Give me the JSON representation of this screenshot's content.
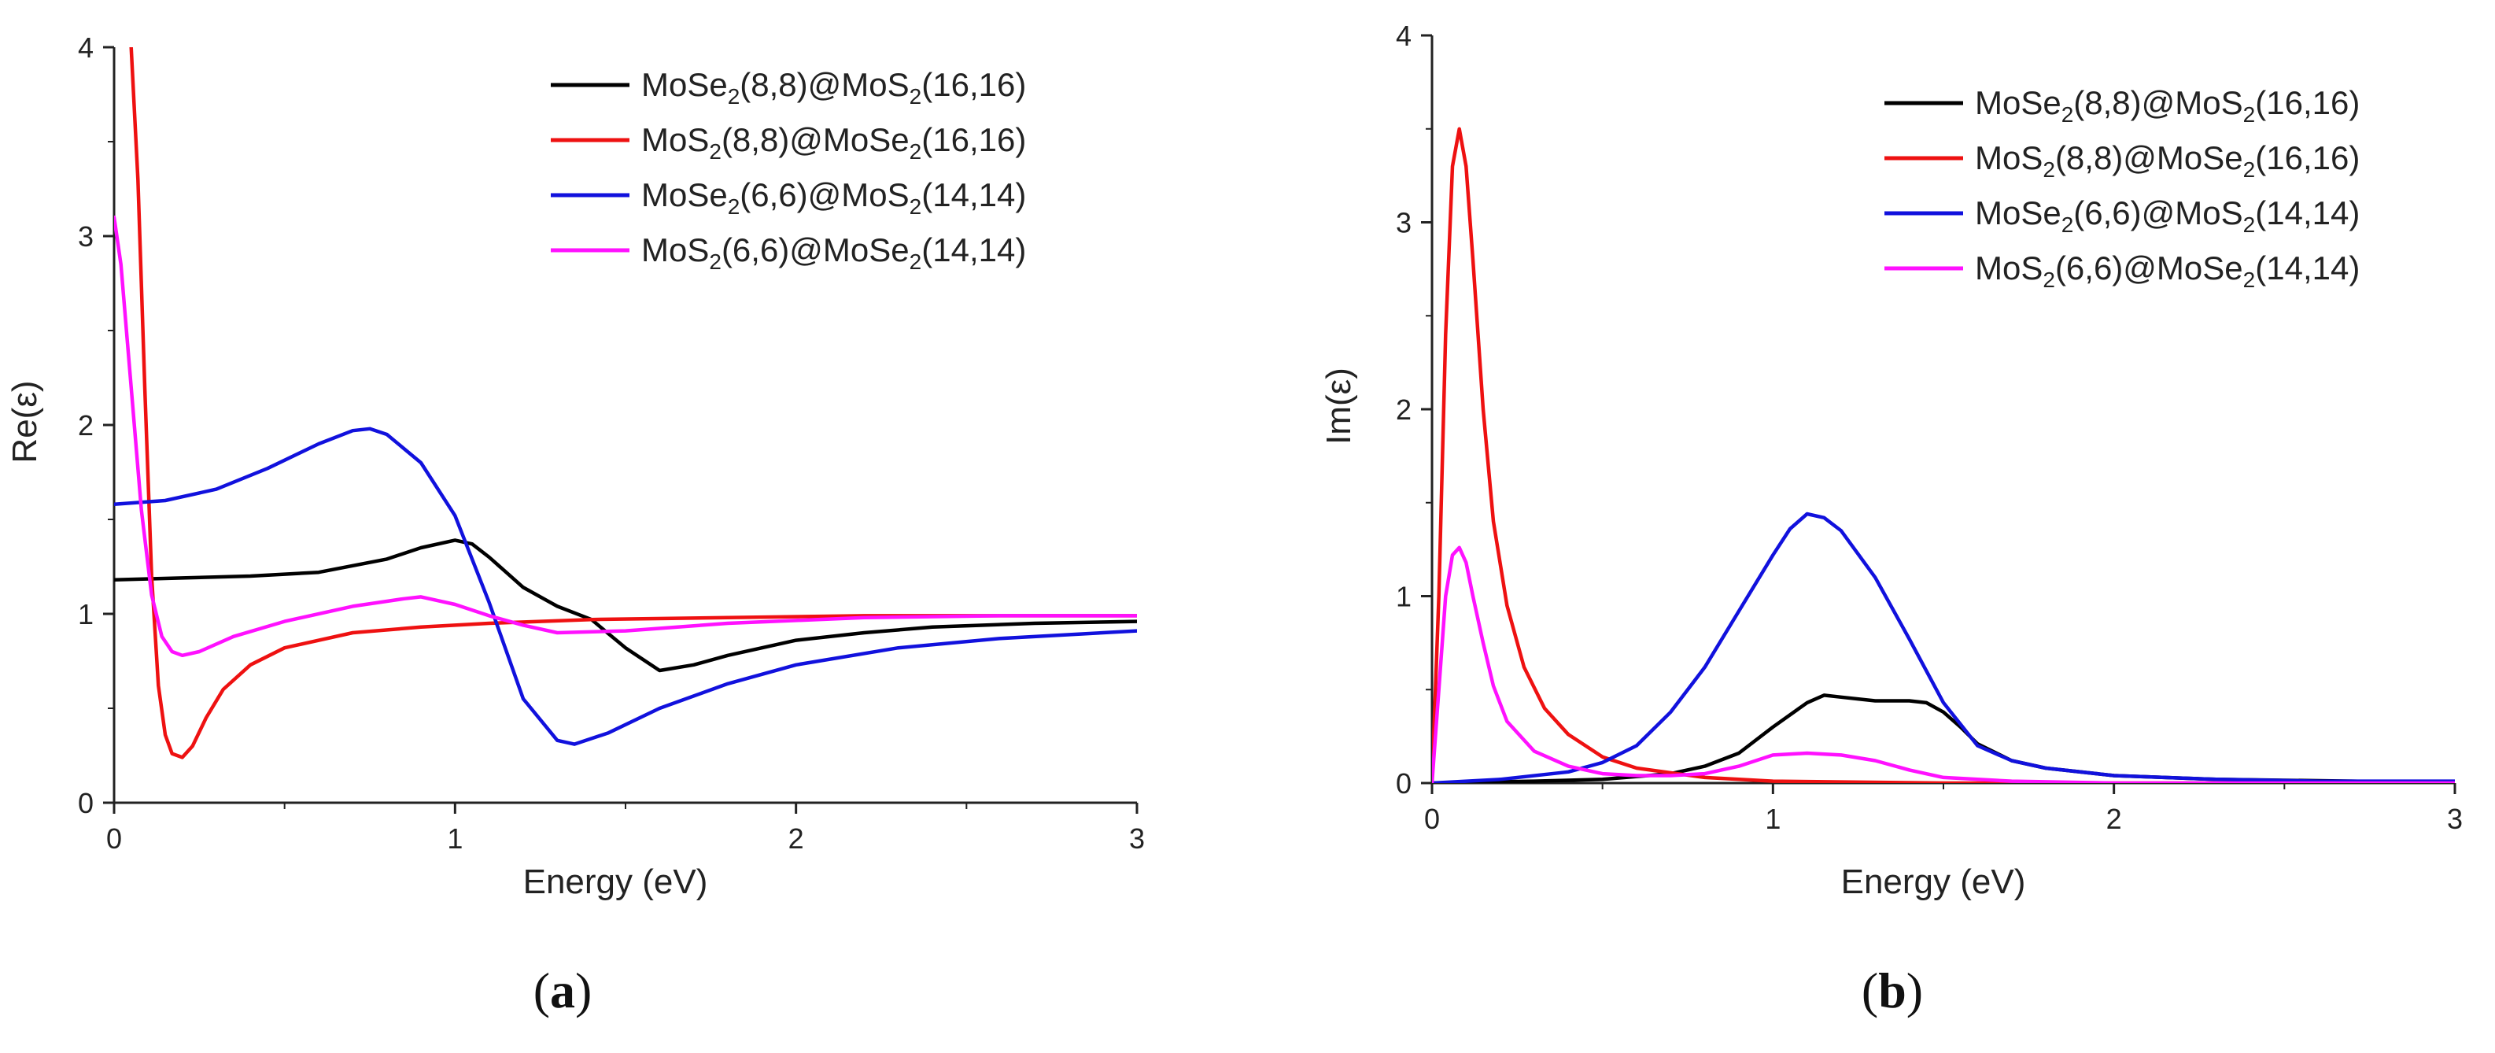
{
  "figure": {
    "panel_a_label": {
      "open": "(",
      "letter": "a",
      "close": ")"
    },
    "panel_b_label": {
      "open": "(",
      "letter": "b",
      "close": ")"
    }
  },
  "colors": {
    "MoSe2(8,8)@MoS2(16,16)": "#000000",
    "MoS2(8,8)@MoSe2(16,16)": "#ee1111",
    "MoSe2(6,6)@MoS2(14,14)": "#1111dd",
    "MoS2(6,6)@MoSe2(14,14)": "#ff11ff"
  },
  "legend_entries": [
    {
      "key": "s1",
      "parts": [
        [
          "MoSe",
          ""
        ],
        [
          "2",
          "sub"
        ],
        [
          "(8,8)@MoS",
          ""
        ],
        [
          "2",
          "sub"
        ],
        [
          "(16,16)",
          ""
        ]
      ],
      "color": "#000000"
    },
    {
      "key": "s2",
      "parts": [
        [
          "MoS",
          ""
        ],
        [
          "2",
          "sub"
        ],
        [
          "(8,8)@MoSe",
          ""
        ],
        [
          "2",
          "sub"
        ],
        [
          "(16,16)",
          ""
        ]
      ],
      "color": "#ee1111"
    },
    {
      "key": "s3",
      "parts": [
        [
          "MoSe",
          ""
        ],
        [
          "2",
          "sub"
        ],
        [
          "(6,6)@MoS",
          ""
        ],
        [
          "2",
          "sub"
        ],
        [
          "(14,14)",
          ""
        ]
      ],
      "color": "#1111dd"
    },
    {
      "key": "s4",
      "parts": [
        [
          "MoS",
          ""
        ],
        [
          "2",
          "sub"
        ],
        [
          "(6,6)@MoSe",
          ""
        ],
        [
          "2",
          "sub"
        ],
        [
          "(14,14)",
          ""
        ]
      ],
      "color": "#ff11ff"
    }
  ],
  "chart_data": [
    {
      "type": "line",
      "id": "a",
      "title": "",
      "xlabel": "Energy (eV)",
      "ylabel": "Re(ε)",
      "xlim": [
        0,
        3
      ],
      "ylim": [
        0,
        4
      ],
      "xticks": [
        0,
        1,
        2,
        3
      ],
      "yticks": [
        0,
        1,
        2,
        3,
        4
      ],
      "legend": "top-right",
      "series": [
        {
          "name": "MoSe2(8,8)@MoS2(16,16)",
          "color": "#000000",
          "x": [
            0,
            0.2,
            0.4,
            0.6,
            0.8,
            0.9,
            1.0,
            1.05,
            1.1,
            1.2,
            1.3,
            1.4,
            1.5,
            1.6,
            1.7,
            1.8,
            2.0,
            2.2,
            2.4,
            2.7,
            3.0
          ],
          "y": [
            1.18,
            1.19,
            1.2,
            1.22,
            1.29,
            1.35,
            1.39,
            1.37,
            1.3,
            1.14,
            1.04,
            0.97,
            0.82,
            0.7,
            0.73,
            0.78,
            0.86,
            0.9,
            0.93,
            0.95,
            0.96
          ]
        },
        {
          "name": "MoS2(8,8)@MoSe2(16,16)",
          "color": "#ee1111",
          "x": [
            0.05,
            0.07,
            0.09,
            0.11,
            0.13,
            0.15,
            0.17,
            0.2,
            0.23,
            0.27,
            0.32,
            0.4,
            0.5,
            0.7,
            0.9,
            1.1,
            1.4,
            1.8,
            2.2,
            2.6,
            3.0
          ],
          "y": [
            4.0,
            3.3,
            2.2,
            1.2,
            0.62,
            0.36,
            0.26,
            0.24,
            0.3,
            0.45,
            0.6,
            0.73,
            0.82,
            0.9,
            0.93,
            0.95,
            0.97,
            0.98,
            0.99,
            0.99,
            0.99
          ]
        },
        {
          "name": "MoSe2(6,6)@MoS2(14,14)",
          "color": "#1111dd",
          "x": [
            0,
            0.15,
            0.3,
            0.45,
            0.6,
            0.7,
            0.75,
            0.8,
            0.9,
            1.0,
            1.1,
            1.2,
            1.3,
            1.35,
            1.45,
            1.6,
            1.8,
            2.0,
            2.3,
            2.6,
            3.0
          ],
          "y": [
            1.58,
            1.6,
            1.66,
            1.77,
            1.9,
            1.97,
            1.98,
            1.95,
            1.8,
            1.52,
            1.06,
            0.55,
            0.33,
            0.31,
            0.37,
            0.5,
            0.63,
            0.73,
            0.82,
            0.87,
            0.91
          ]
        },
        {
          "name": "MoS2(6,6)@MoSe2(14,14)",
          "color": "#ff11ff",
          "x": [
            0,
            0.02,
            0.05,
            0.08,
            0.11,
            0.14,
            0.17,
            0.2,
            0.25,
            0.35,
            0.5,
            0.7,
            0.85,
            0.9,
            1.0,
            1.1,
            1.2,
            1.3,
            1.5,
            1.8,
            2.2,
            2.6,
            3.0
          ],
          "y": [
            3.1,
            2.85,
            2.2,
            1.55,
            1.1,
            0.88,
            0.8,
            0.78,
            0.8,
            0.88,
            0.96,
            1.04,
            1.08,
            1.09,
            1.05,
            0.99,
            0.94,
            0.9,
            0.91,
            0.95,
            0.98,
            0.99,
            0.99
          ]
        }
      ]
    },
    {
      "type": "line",
      "id": "b",
      "title": "",
      "xlabel": "Energy (eV)",
      "ylabel": "Im(ε)",
      "xlim": [
        0,
        3
      ],
      "ylim": [
        0,
        4
      ],
      "xticks": [
        0,
        1,
        2,
        3
      ],
      "yticks": [
        0,
        1,
        2,
        3,
        4
      ],
      "legend": "top-right",
      "series": [
        {
          "name": "MoSe2(8,8)@MoS2(16,16)",
          "color": "#000000",
          "x": [
            0,
            0.3,
            0.5,
            0.7,
            0.8,
            0.9,
            1.0,
            1.1,
            1.15,
            1.2,
            1.3,
            1.4,
            1.45,
            1.5,
            1.55,
            1.6,
            1.7,
            1.8,
            2.0,
            2.3,
            2.7,
            3.0
          ],
          "y": [
            0.0,
            0.01,
            0.02,
            0.05,
            0.09,
            0.16,
            0.3,
            0.43,
            0.47,
            0.46,
            0.44,
            0.44,
            0.43,
            0.38,
            0.3,
            0.21,
            0.12,
            0.08,
            0.04,
            0.02,
            0.01,
            0.0
          ]
        },
        {
          "name": "MoS2(8,8)@MoSe2(16,16)",
          "color": "#ee1111",
          "x": [
            0,
            0.02,
            0.04,
            0.06,
            0.08,
            0.1,
            0.12,
            0.15,
            0.18,
            0.22,
            0.27,
            0.33,
            0.4,
            0.5,
            0.6,
            0.8,
            1.0,
            1.5,
            2.0,
            3.0
          ],
          "y": [
            0.0,
            1.0,
            2.4,
            3.3,
            3.5,
            3.3,
            2.8,
            2.0,
            1.4,
            0.95,
            0.62,
            0.4,
            0.26,
            0.14,
            0.08,
            0.03,
            0.01,
            0.0,
            0.0,
            0.0
          ]
        },
        {
          "name": "MoSe2(6,6)@MoS2(14,14)",
          "color": "#1111dd",
          "x": [
            0,
            0.2,
            0.4,
            0.5,
            0.6,
            0.7,
            0.8,
            0.9,
            1.0,
            1.05,
            1.1,
            1.15,
            1.2,
            1.3,
            1.4,
            1.5,
            1.6,
            1.7,
            1.8,
            2.0,
            2.3,
            2.6,
            3.0
          ],
          "y": [
            0.0,
            0.02,
            0.06,
            0.11,
            0.2,
            0.38,
            0.62,
            0.92,
            1.22,
            1.36,
            1.44,
            1.42,
            1.35,
            1.1,
            0.77,
            0.43,
            0.2,
            0.12,
            0.08,
            0.04,
            0.02,
            0.01,
            0.01
          ]
        },
        {
          "name": "MoS2(6,6)@MoSe2(14,14)",
          "color": "#ff11ff",
          "x": [
            0,
            0.02,
            0.04,
            0.06,
            0.08,
            0.1,
            0.12,
            0.15,
            0.18,
            0.22,
            0.3,
            0.4,
            0.5,
            0.6,
            0.7,
            0.8,
            0.9,
            1.0,
            1.1,
            1.2,
            1.3,
            1.4,
            1.5,
            1.7,
            2.0,
            3.0
          ],
          "y": [
            0.0,
            0.5,
            1.0,
            1.22,
            1.26,
            1.18,
            1.0,
            0.75,
            0.52,
            0.33,
            0.17,
            0.09,
            0.05,
            0.04,
            0.04,
            0.05,
            0.09,
            0.15,
            0.16,
            0.15,
            0.12,
            0.07,
            0.03,
            0.01,
            0.0,
            0.0
          ]
        }
      ]
    }
  ]
}
